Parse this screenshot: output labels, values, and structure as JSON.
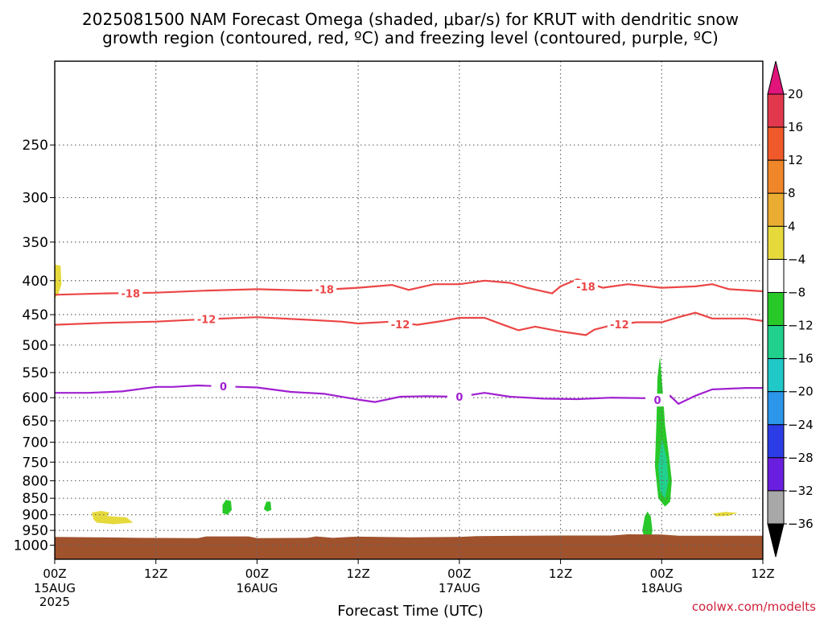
{
  "chart_data": {
    "type": "time-height cross-section",
    "title_line1": "2025081500 NAM Forecast Omega (shaded, μbar/s) for KRUT with dendritic snow",
    "title_line2": "growth region (contoured, red, ºC) and freezing level (contoured, purple, ºC)",
    "xlabel": "Forecast Time (UTC)",
    "credit": "coolwx.com/modelts",
    "x_unit": "forecast hour",
    "xlim": [
      0,
      84
    ],
    "x_ticks": [
      {
        "x": 0,
        "label": "00Z",
        "sub": "15AUG",
        "year": "2025"
      },
      {
        "x": 12,
        "label": "12Z",
        "sub": ""
      },
      {
        "x": 24,
        "label": "00Z",
        "sub": "16AUG"
      },
      {
        "x": 36,
        "label": "12Z",
        "sub": ""
      },
      {
        "x": 48,
        "label": "00Z",
        "sub": "17AUG"
      },
      {
        "x": 60,
        "label": "12Z",
        "sub": ""
      },
      {
        "x": 72,
        "label": "00Z",
        "sub": "18AUG"
      },
      {
        "x": 84,
        "label": "12Z",
        "sub": ""
      }
    ],
    "y_unit": "hPa",
    "y_ticks": [
      250,
      300,
      350,
      400,
      450,
      500,
      550,
      600,
      650,
      700,
      750,
      800,
      850,
      900,
      950,
      1000
    ],
    "ylim": [
      1050,
      187
    ],
    "colorbar": {
      "labels": [
        "20",
        "16",
        "12",
        "8",
        "4",
        "−4",
        "−8",
        "−12",
        "−16",
        "−20",
        "−24",
        "−28",
        "−32",
        "−36"
      ],
      "colors": [
        "#e2384e",
        "#f05a2a",
        "#f0862a",
        "#eaad32",
        "#e6d93c",
        "#ffffff",
        "#28c828",
        "#20d08c",
        "#20c8c8",
        "#2c96ea",
        "#2c3ce6",
        "#6a1ee0",
        "#a01ec8",
        "#a8a8a8"
      ],
      "top_cap": "#e0147a",
      "bottom_cap": "#000000"
    },
    "contours": [
      {
        "name": "-18",
        "color": "#ec4646",
        "points": [
          [
            0,
            420
          ],
          [
            6,
            418
          ],
          [
            12,
            417
          ],
          [
            18,
            414
          ],
          [
            24,
            412
          ],
          [
            30,
            414
          ],
          [
            36,
            410
          ],
          [
            40,
            406
          ],
          [
            42,
            413
          ],
          [
            45,
            405
          ],
          [
            48,
            405
          ],
          [
            51,
            400
          ],
          [
            54,
            403
          ],
          [
            56,
            410
          ],
          [
            59,
            418
          ],
          [
            60,
            408
          ],
          [
            62,
            398
          ],
          [
            63,
            402
          ],
          [
            65,
            410
          ],
          [
            68,
            405
          ],
          [
            72,
            410
          ],
          [
            76,
            408
          ],
          [
            78,
            405
          ],
          [
            80,
            412
          ],
          [
            84,
            415
          ]
        ],
        "labels": [
          [
            9,
            418
          ],
          [
            32,
            412
          ],
          [
            63,
            408
          ]
        ]
      },
      {
        "name": "-12",
        "color": "#ec4646",
        "points": [
          [
            0,
            466
          ],
          [
            6,
            463
          ],
          [
            12,
            461
          ],
          [
            18,
            457
          ],
          [
            24,
            454
          ],
          [
            30,
            458
          ],
          [
            34,
            461
          ],
          [
            36,
            464
          ],
          [
            40,
            461
          ],
          [
            43,
            466
          ],
          [
            46,
            460
          ],
          [
            48,
            455
          ],
          [
            51,
            455
          ],
          [
            53,
            465
          ],
          [
            55,
            475
          ],
          [
            57,
            469
          ],
          [
            60,
            477
          ],
          [
            63,
            483
          ],
          [
            64,
            474
          ],
          [
            66,
            467
          ],
          [
            69,
            462
          ],
          [
            72,
            462
          ],
          [
            74,
            454
          ],
          [
            76,
            447
          ],
          [
            78,
            456
          ],
          [
            82,
            456
          ],
          [
            84,
            460
          ]
        ],
        "labels": [
          [
            18,
            457
          ],
          [
            41,
            465
          ],
          [
            67,
            465
          ]
        ]
      },
      {
        "name": "0",
        "color": "#a020d0",
        "points": [
          [
            0,
            590
          ],
          [
            4,
            590
          ],
          [
            8,
            587
          ],
          [
            12,
            578
          ],
          [
            14,
            578
          ],
          [
            17,
            575
          ],
          [
            20,
            577
          ],
          [
            24,
            579
          ],
          [
            28,
            588
          ],
          [
            32,
            592
          ],
          [
            36,
            604
          ],
          [
            38,
            609
          ],
          [
            41,
            598
          ],
          [
            44,
            597
          ],
          [
            48,
            598
          ],
          [
            51,
            590
          ],
          [
            54,
            598
          ],
          [
            58,
            602
          ],
          [
            62,
            603
          ],
          [
            66,
            600
          ],
          [
            70,
            601
          ],
          [
            72,
            605
          ],
          [
            73,
            596
          ],
          [
            74,
            613
          ],
          [
            76,
            596
          ],
          [
            78,
            583
          ],
          [
            82,
            580
          ],
          [
            84,
            580
          ]
        ],
        "labels": [
          [
            20,
            577
          ],
          [
            48,
            598
          ],
          [
            71.5,
            605
          ]
        ]
      }
    ],
    "omega_areas": [
      {
        "value": "-4 to -8",
        "color": "#28c828",
        "points": [
          [
            71.8,
            520
          ],
          [
            72.1,
            580
          ],
          [
            72.4,
            660
          ],
          [
            72.9,
            740
          ],
          [
            73.2,
            800
          ],
          [
            73.0,
            860
          ],
          [
            72.4,
            875
          ],
          [
            71.6,
            850
          ],
          [
            71.2,
            760
          ],
          [
            71.4,
            640
          ],
          [
            71.5,
            560
          ]
        ]
      },
      {
        "value": "-8 to -12",
        "color": "#20d08c",
        "points": [
          [
            72.0,
            690
          ],
          [
            72.6,
            740
          ],
          [
            72.8,
            800
          ],
          [
            72.4,
            850
          ],
          [
            71.8,
            830
          ],
          [
            71.6,
            760
          ]
        ]
      },
      {
        "value": "-4 to -8",
        "color": "#28c828",
        "points": [
          [
            70.3,
            890
          ],
          [
            70.7,
            905
          ],
          [
            70.9,
            950
          ],
          [
            70.7,
            985
          ],
          [
            70.1,
            990
          ],
          [
            69.7,
            950
          ],
          [
            70.0,
            905
          ]
        ]
      },
      {
        "value": "-4 to -8",
        "color": "#28c828",
        "points": [
          [
            20.3,
            855
          ],
          [
            20.9,
            858
          ],
          [
            21.0,
            885
          ],
          [
            20.5,
            900
          ],
          [
            19.9,
            895
          ],
          [
            19.9,
            870
          ]
        ]
      },
      {
        "value": "-4 to -8",
        "color": "#28c828",
        "points": [
          [
            25.1,
            860
          ],
          [
            25.6,
            860
          ],
          [
            25.7,
            885
          ],
          [
            25.2,
            890
          ],
          [
            24.8,
            882
          ]
        ]
      },
      {
        "value": "4 to 8",
        "color": "#e6d93c",
        "points": [
          [
            0,
            378
          ],
          [
            0.7,
            380
          ],
          [
            0.8,
            405
          ],
          [
            0.4,
            420
          ],
          [
            0,
            425
          ]
        ]
      },
      {
        "value": "4 to 8",
        "color": "#e6d93c",
        "points": [
          [
            4.4,
            893
          ],
          [
            5.5,
            888
          ],
          [
            6.5,
            893
          ],
          [
            6.2,
            904
          ],
          [
            8.5,
            908
          ],
          [
            9.3,
            925
          ],
          [
            7,
            930
          ],
          [
            5,
            925
          ],
          [
            4.6,
            915
          ]
        ]
      },
      {
        "value": "4 to 8",
        "color": "#e6d93c",
        "points": [
          [
            78,
            897
          ],
          [
            79.5,
            891
          ],
          [
            81,
            894
          ],
          [
            80,
            903
          ],
          [
            78.5,
            905
          ]
        ]
      }
    ],
    "terrain": {
      "color": "#a0522d",
      "surface": [
        [
          0,
          972
        ],
        [
          5,
          973
        ],
        [
          10,
          975
        ],
        [
          17,
          976
        ],
        [
          18,
          970
        ],
        [
          23,
          970
        ],
        [
          24,
          976
        ],
        [
          30,
          975
        ],
        [
          31,
          970
        ],
        [
          33,
          975
        ],
        [
          35,
          972
        ],
        [
          36,
          971
        ],
        [
          42,
          973
        ],
        [
          48,
          972
        ],
        [
          50,
          969
        ],
        [
          60,
          967
        ],
        [
          66,
          967
        ],
        [
          68,
          963
        ],
        [
          72,
          964
        ],
        [
          74,
          968
        ],
        [
          84,
          968
        ]
      ]
    }
  }
}
